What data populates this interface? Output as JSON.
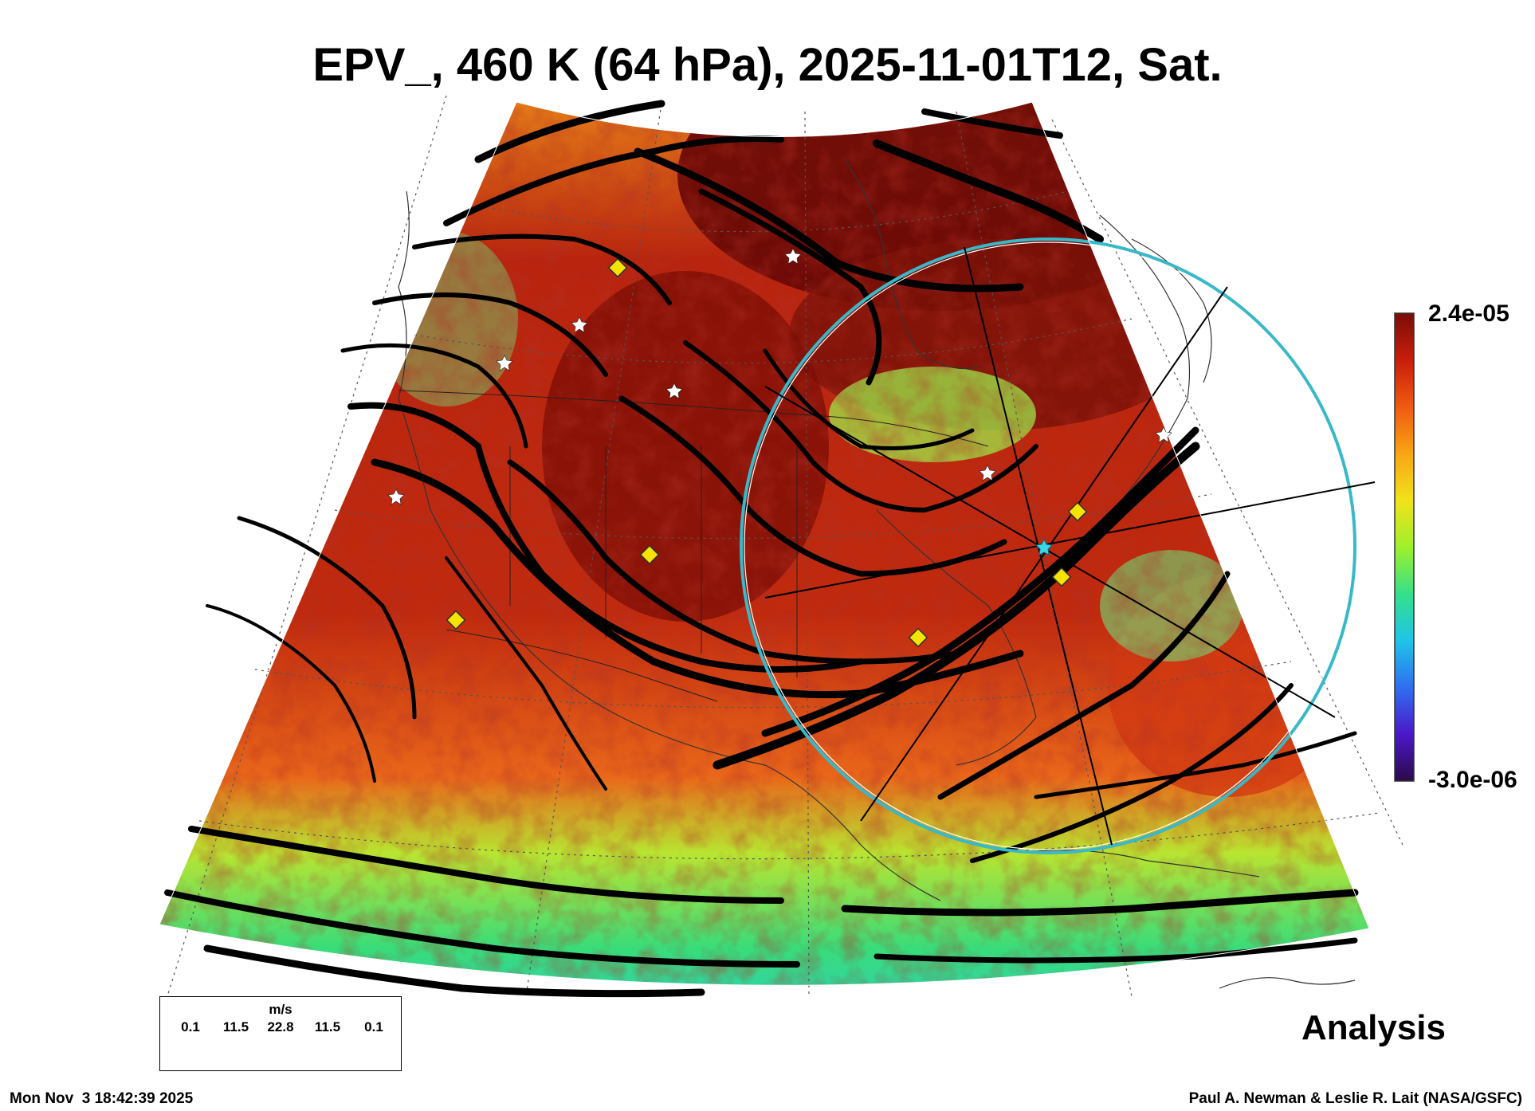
{
  "title": "EPV_, 460 K (64 hPa), 2025-11-01T12, Sat.",
  "colorbar": {
    "max_label": "2.4e-05",
    "min_label": "-3.0e-06",
    "max": 2.4e-05,
    "min": -3e-06,
    "colormap": [
      "#2a0a4a",
      "#4b18c8",
      "#2f6ff0",
      "#1fc4e8",
      "#35e08a",
      "#9ef02c",
      "#f2e21a",
      "#f8a514",
      "#ef5a10",
      "#c81e0c",
      "#7a0c06"
    ]
  },
  "wind_legend": {
    "unit": "m/s",
    "values": [
      "0.1",
      "11.5",
      "22.8",
      "11.5",
      "0.1"
    ]
  },
  "label_analysis": "Analysis",
  "footer": {
    "timestamp": "Mon Nov  3 18:42:39 2025",
    "credit": "Paul A. Newman & Leslie R. Lait (NASA/GSFC)"
  },
  "colors": {
    "stereo_circle": "#39b8c8",
    "marker_diamond": "#f5e400",
    "marker_star": "#ffffff",
    "streamline": "#000000"
  }
}
